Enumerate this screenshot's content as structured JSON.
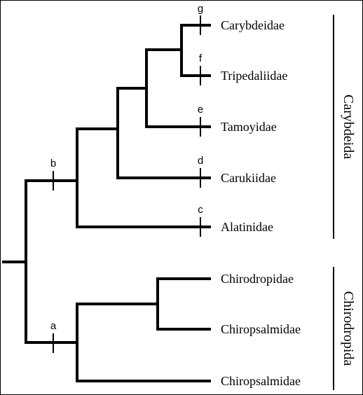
{
  "taxa": [
    "Carybdeidae",
    "Tripedaliidae",
    "Tamoyidae",
    "Carukiidae",
    "Alatinidae",
    "Chirodropidae",
    "Chiropsalmidae",
    "Chiropsalmidae"
  ],
  "markers": [
    "a",
    "b",
    "c",
    "d",
    "e",
    "f",
    "g"
  ],
  "groups": [
    "Carybdeida",
    "Chirodropida"
  ]
}
